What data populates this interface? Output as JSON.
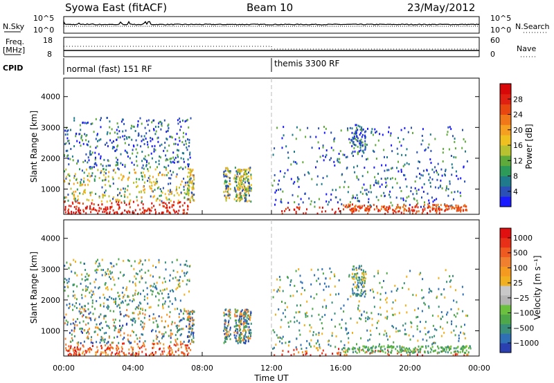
{
  "header": {
    "title_left": "Syowa East (fitACF)",
    "title_center": "Beam 10",
    "title_right": "23/May/2012"
  },
  "status_panel": {
    "nsky_label": "N.Sky",
    "freq_label": "Freq.",
    "freq_unit": "[MHz]",
    "cpid_label": "CPID",
    "nsearch_label": "N.Search",
    "nave_label": "Nave",
    "nsky_ticks": [
      "10^5",
      "10^0"
    ],
    "nsearch_ticks": [
      "10^5",
      "10^0"
    ],
    "freq_ticks": [
      "18",
      "8"
    ],
    "nave_ticks": [
      "60",
      "0"
    ],
    "cpid_segments": [
      {
        "label": "normal (fast) 151 RF",
        "start_hour": 0
      },
      {
        "label": "themis 3300 RF",
        "start_hour": 12
      }
    ]
  },
  "chart_data": [
    {
      "type": "heatmap",
      "name": "power",
      "ylabel": "Slant Range [km]",
      "xlabel": "",
      "xlim_hours": [
        0,
        24
      ],
      "ylim": [
        180,
        4600
      ],
      "yticks": [
        "1000",
        "2000",
        "3000",
        "4000"
      ],
      "colorbar": {
        "label": "Power [dB]",
        "ticks": [
          "4",
          "8",
          "12",
          "16",
          "20",
          "24",
          "28"
        ],
        "colors": [
          "#1a1aff",
          "#2a50b8",
          "#1f7a8c",
          "#2e9a5a",
          "#5eaa3a",
          "#b8c230",
          "#f0c020",
          "#f5a020",
          "#f07818",
          "#e84810",
          "#e02010",
          "#d80808"
        ]
      }
    },
    {
      "type": "heatmap",
      "name": "velocity",
      "ylabel": "Slant Range [km]",
      "xlabel": "Time UT",
      "xlim_hours": [
        0,
        24
      ],
      "ylim": [
        180,
        4600
      ],
      "yticks": [
        "1000",
        "2000",
        "3000",
        "4000"
      ],
      "xticks": [
        "00:00",
        "04:00",
        "08:00",
        "12:00",
        "16:00",
        "20:00",
        "00:00"
      ],
      "colorbar": {
        "label": "Velocity [m s⁻¹]",
        "ticks": [
          "1000",
          "500",
          "100",
          "25",
          "−25",
          "−100",
          "−500",
          "−1000"
        ],
        "colors": [
          "#2a3fb0",
          "#2e6fb5",
          "#3a8f7a",
          "#4ea84a",
          "#6cc040",
          "#b4b4b4",
          "#c8c8c8",
          "#f0b020",
          "#f59a20",
          "#f08030",
          "#ee5a20",
          "#e83018",
          "#e01010"
        ]
      }
    }
  ]
}
